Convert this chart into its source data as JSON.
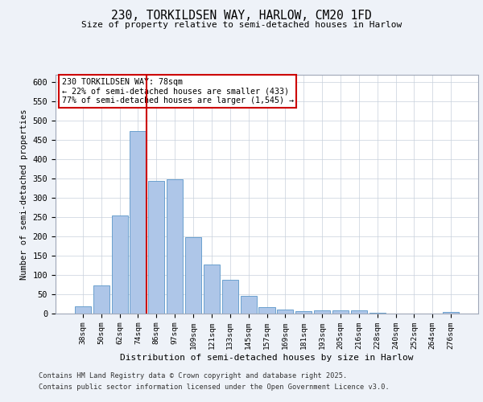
{
  "title1": "230, TORKILDSEN WAY, HARLOW, CM20 1FD",
  "title2": "Size of property relative to semi-detached houses in Harlow",
  "xlabel": "Distribution of semi-detached houses by size in Harlow",
  "ylabel": "Number of semi-detached properties",
  "categories": [
    "38sqm",
    "50sqm",
    "62sqm",
    "74sqm",
    "86sqm",
    "97sqm",
    "109sqm",
    "121sqm",
    "133sqm",
    "145sqm",
    "157sqm",
    "169sqm",
    "181sqm",
    "193sqm",
    "205sqm",
    "216sqm",
    "228sqm",
    "240sqm",
    "252sqm",
    "264sqm",
    "276sqm"
  ],
  "values": [
    18,
    73,
    255,
    473,
    343,
    347,
    197,
    127,
    87,
    46,
    16,
    10,
    7,
    9,
    9,
    8,
    2,
    0,
    0,
    0,
    4
  ],
  "bar_color": "#aec6e8",
  "bar_edgecolor": "#5a96c8",
  "vline_label": "230 TORKILDSEN WAY: 78sqm",
  "annotation_line1": "← 22% of semi-detached houses are smaller (433)",
  "annotation_line2": "77% of semi-detached houses are larger (1,545) →",
  "vline_color": "#cc0000",
  "box_edgecolor": "#cc0000",
  "footer1": "Contains HM Land Registry data © Crown copyright and database right 2025.",
  "footer2": "Contains public sector information licensed under the Open Government Licence v3.0.",
  "ylim": [
    0,
    620
  ],
  "yticks": [
    0,
    50,
    100,
    150,
    200,
    250,
    300,
    350,
    400,
    450,
    500,
    550,
    600
  ],
  "bg_color": "#eef2f8",
  "plot_bg_color": "#ffffff",
  "grid_color": "#c8d0dc"
}
